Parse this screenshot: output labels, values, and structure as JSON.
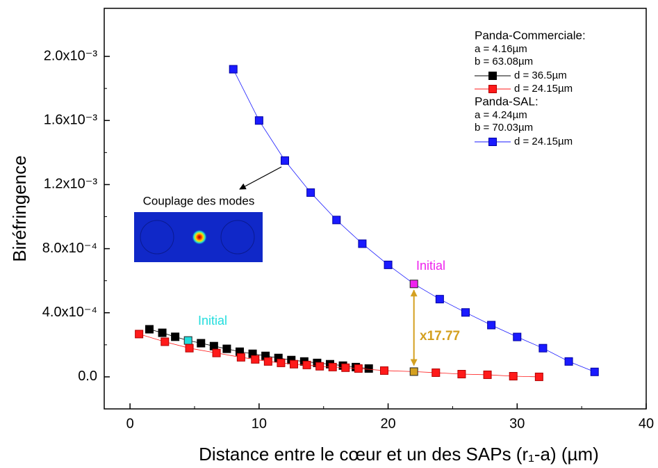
{
  "chart_data": {
    "type": "line",
    "x_label": "Distance entre le cœur et un des SAPs (r₁-a) (µm)",
    "y_label": "Biréfringence",
    "xlim": [
      -2,
      40
    ],
    "xticks": [
      0,
      10,
      20,
      30,
      40
    ],
    "ylim": [
      -0.0002,
      0.0023
    ],
    "yticks": [
      {
        "value": 0,
        "label": "0.0"
      },
      {
        "value": 0.0004,
        "label": "4.0x10⁻⁴"
      },
      {
        "value": 0.0008,
        "label": "8.0x10⁻⁴"
      },
      {
        "value": 0.0012,
        "label": "1.2x10⁻³"
      },
      {
        "value": 0.0016,
        "label": "1.6x10⁻³"
      },
      {
        "value": 0.002,
        "label": "2.0x10⁻³"
      }
    ],
    "legend_groups": [
      {
        "title": "Panda-Commerciale:",
        "params": [
          "a = 4.16µm",
          "b = 63.08µm"
        ]
      },
      {
        "title": "Panda-SAL:",
        "params": [
          "a = 4.24µm",
          "b = 70.03µm"
        ]
      }
    ],
    "series": [
      {
        "name": "d = 36.5µm",
        "color": "#000000",
        "x": [
          1.5,
          2.5,
          3.5,
          4.5,
          5.5,
          6.5,
          7.5,
          8.5,
          9.5,
          10.5,
          11.5,
          12.5,
          13.5,
          14.5,
          15.5,
          16.5,
          17.5,
          18.5
        ],
        "values": [
          0.000297,
          0.000275,
          0.00025,
          0.000227,
          0.00021,
          0.000192,
          0.000175,
          0.000157,
          0.000144,
          0.000131,
          0.000118,
          0.000105,
          9.6e-05,
          8.7e-05,
          7.9e-05,
          7e-05,
          6.1e-05,
          5.2e-05
        ],
        "highlight": {
          "index": 3,
          "color": "#22dddd"
        }
      },
      {
        "name": "d = 24.15µm",
        "color": "#ff1a1a",
        "x": [
          0.7,
          2.7,
          4.6,
          6.7,
          8.6,
          9.7,
          10.7,
          11.7,
          12.7,
          13.7,
          14.7,
          15.7,
          16.7,
          17.7,
          19.7,
          22,
          23.7,
          25.7,
          27.7,
          29.7,
          31.7
        ],
        "values": [
          0.000267,
          0.000219,
          0.000179,
          0.000149,
          0.000122,
          0.000109,
          9.6e-05,
          8.7e-05,
          7.9e-05,
          7.4e-05,
          6.6e-05,
          6.1e-05,
          5.7e-05,
          5.2e-05,
          3.9e-05,
          3.26e-05,
          2.6e-05,
          1.7e-05,
          1.3e-05,
          4e-06,
          0
        ],
        "highlight": {
          "index": 15,
          "color": "#d4a020"
        }
      },
      {
        "name": "d = 24.15µm",
        "color": "#1a1aff",
        "x": [
          8,
          10,
          12,
          14,
          16,
          18,
          20,
          22,
          24,
          26,
          28,
          30,
          32,
          34,
          36
        ],
        "values": [
          0.00192,
          0.0016,
          0.00135,
          0.00115,
          0.000979,
          0.000831,
          0.000699,
          0.00058,
          0.000485,
          0.000402,
          0.000323,
          0.000249,
          0.000179,
          9.6e-05,
          3.1e-05
        ],
        "highlight": {
          "index": 7,
          "color": "#ee22ee"
        }
      }
    ],
    "annotations": [
      {
        "text": "Initial",
        "color": "#22dddd"
      },
      {
        "text": "Initial",
        "color": "#ee22ee"
      },
      {
        "text": "x17.77",
        "color": "#d4a020"
      },
      {
        "text": "Couplage des modes",
        "color": "#000000"
      }
    ]
  }
}
